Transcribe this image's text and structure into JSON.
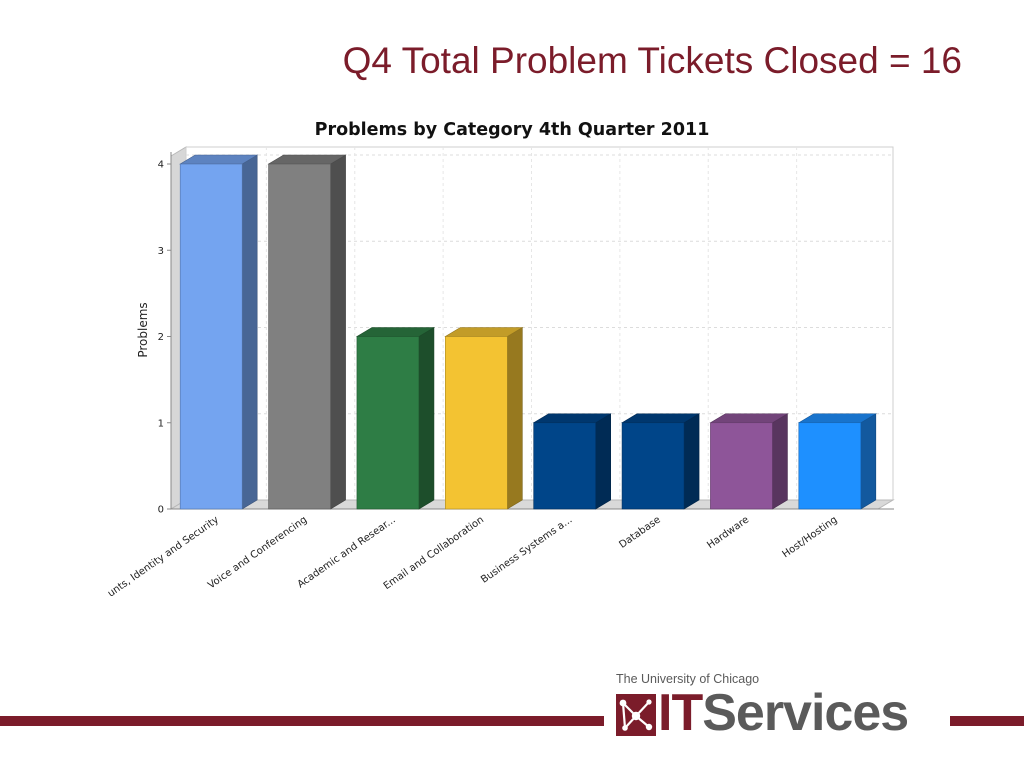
{
  "slide": {
    "title": "Q4 Total Problem Tickets Closed = 16"
  },
  "chart_data": {
    "type": "bar",
    "title": "Problems by Category 4th Quarter 2011",
    "xlabel": "",
    "ylabel": "Problems",
    "ylim": [
      0,
      4
    ],
    "yticks": [
      0,
      1,
      2,
      3,
      4
    ],
    "grid": true,
    "style": "3d",
    "categories": [
      "unts, Identity and Security",
      "Voice and Conferencing",
      "Academic and Resear...",
      "Email and Collaboration",
      "Business Systems a...",
      "Database",
      "Hardware",
      "Host/Hosting"
    ],
    "values": [
      4,
      4,
      2,
      2,
      1,
      1,
      1,
      1
    ],
    "colors": [
      "#74a4f0",
      "#808080",
      "#2e7d45",
      "#f3c332",
      "#004589",
      "#004589",
      "#8e5599",
      "#1e90ff"
    ]
  },
  "logo": {
    "university": "The University of Chicago",
    "it": "IT",
    "services": "Services",
    "colors": {
      "maroon": "#7b1c2a",
      "gray": "#5a5a5a"
    }
  }
}
